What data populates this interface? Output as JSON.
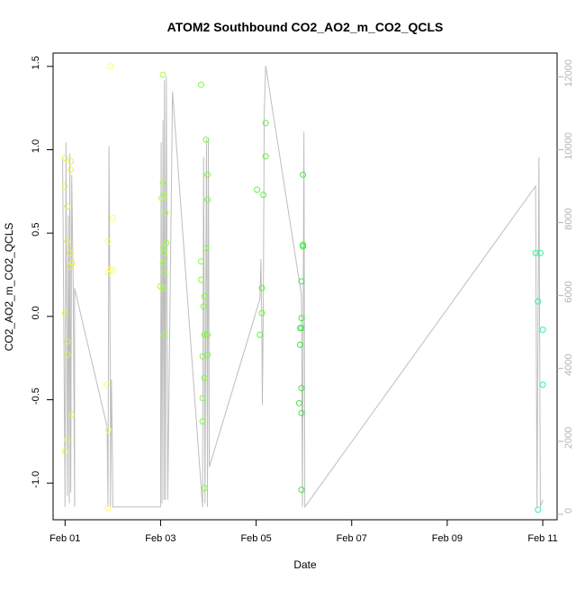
{
  "chart_data": {
    "type": "scatter",
    "title": "ATOM2 Southbound CO2_AO2_m_CO2_QCLS",
    "xlabel": "Date",
    "ylabel": "CO2_AO2_m_CO2_QCLS",
    "x_unit": "days since Feb 01",
    "xlim": [
      -0.25,
      10.3
    ],
    "ylim": [
      -1.22,
      1.58
    ],
    "y2lim": [
      -150,
      12650
    ],
    "x_ticks": [
      {
        "value": 0,
        "label": "Feb 01"
      },
      {
        "value": 2,
        "label": "Feb 03"
      },
      {
        "value": 4,
        "label": "Feb 05"
      },
      {
        "value": 6,
        "label": "Feb 07"
      },
      {
        "value": 8,
        "label": "Feb 09"
      },
      {
        "value": 10,
        "label": "Feb 11"
      }
    ],
    "y_ticks": [
      {
        "value": -1.0,
        "label": "-1.0"
      },
      {
        "value": -0.5,
        "label": "-0.5"
      },
      {
        "value": 0.0,
        "label": "0.0"
      },
      {
        "value": 0.5,
        "label": "0.5"
      },
      {
        "value": 1.0,
        "label": "1.0"
      },
      {
        "value": 1.5,
        "label": "1.5"
      }
    ],
    "y2_ticks": [
      {
        "value": 0,
        "label": "0"
      },
      {
        "value": 2000,
        "label": "2000"
      },
      {
        "value": 4000,
        "label": "4000"
      },
      {
        "value": 6000,
        "label": "6000"
      },
      {
        "value": 8000,
        "label": "8000"
      },
      {
        "value": 10000,
        "label": "10000"
      },
      {
        "value": 12000,
        "label": "12000"
      }
    ],
    "grid": false,
    "point_color_scale": [
      "#e6f04a",
      "#ffff60",
      "#a0ff40",
      "#60f040",
      "#30e050",
      "#30f0a0"
    ],
    "points": [
      {
        "x": 0.0,
        "y": 0.95,
        "color": "#e6f04a"
      },
      {
        "x": 0.0,
        "y": 0.78,
        "color": "#e6f04a"
      },
      {
        "x": 0.05,
        "y": 0.66,
        "color": "#e6f04a"
      },
      {
        "x": 0.05,
        "y": 0.45,
        "color": "#e6f04a"
      },
      {
        "x": 0.1,
        "y": 0.38,
        "color": "#e6f04a"
      },
      {
        "x": 0.1,
        "y": 0.3,
        "color": "#e6f04a"
      },
      {
        "x": 0.12,
        "y": 0.93,
        "color": "#e6f04a"
      },
      {
        "x": 0.12,
        "y": 0.88,
        "color": "#e6f04a"
      },
      {
        "x": 0.15,
        "y": 0.32,
        "color": "#e6f04a"
      },
      {
        "x": 0.0,
        "y": 0.02,
        "color": "#e6f04a"
      },
      {
        "x": 0.05,
        "y": -0.15,
        "color": "#e6f04a"
      },
      {
        "x": 0.05,
        "y": -0.23,
        "color": "#e6f04a"
      },
      {
        "x": 0.15,
        "y": -0.59,
        "color": "#e6f04a"
      },
      {
        "x": 0.05,
        "y": -0.74,
        "color": "#e6f04a"
      },
      {
        "x": 0.0,
        "y": -0.81,
        "color": "#e6f04a"
      },
      {
        "x": 0.95,
        "y": 1.5,
        "color": "#ffff60"
      },
      {
        "x": 1.0,
        "y": 0.59,
        "color": "#ffff60"
      },
      {
        "x": 0.9,
        "y": 0.45,
        "color": "#ffff60"
      },
      {
        "x": 0.95,
        "y": 0.28,
        "color": "#ffff60"
      },
      {
        "x": 1.0,
        "y": 0.28,
        "color": "#ffff60"
      },
      {
        "x": 0.9,
        "y": 0.26,
        "color": "#ffff60"
      },
      {
        "x": 0.88,
        "y": -0.41,
        "color": "#ffff60"
      },
      {
        "x": 0.9,
        "y": -0.68,
        "color": "#ffff60"
      },
      {
        "x": 0.9,
        "y": -1.15,
        "color": "#ffff60"
      },
      {
        "x": 2.05,
        "y": 1.45,
        "color": "#a0ff40"
      },
      {
        "x": 2.05,
        "y": 0.8,
        "color": "#a0ff40"
      },
      {
        "x": 2.08,
        "y": 0.73,
        "color": "#a0ff40"
      },
      {
        "x": 2.02,
        "y": 0.71,
        "color": "#a0ff40"
      },
      {
        "x": 2.1,
        "y": 0.62,
        "color": "#a0ff40"
      },
      {
        "x": 2.12,
        "y": 0.44,
        "color": "#a0ff40"
      },
      {
        "x": 2.05,
        "y": 0.41,
        "color": "#a0ff40"
      },
      {
        "x": 2.08,
        "y": 0.38,
        "color": "#a0ff40"
      },
      {
        "x": 2.05,
        "y": 0.32,
        "color": "#a0ff40"
      },
      {
        "x": 2.08,
        "y": 0.26,
        "color": "#a0ff40"
      },
      {
        "x": 2.0,
        "y": 0.18,
        "color": "#a0ff40"
      },
      {
        "x": 2.05,
        "y": 0.17,
        "color": "#a0ff40"
      },
      {
        "x": 2.08,
        "y": -0.11,
        "color": "#a0ff40"
      },
      {
        "x": 2.85,
        "y": 1.39,
        "color": "#80f840"
      },
      {
        "x": 2.95,
        "y": 1.06,
        "color": "#80f840"
      },
      {
        "x": 2.98,
        "y": 0.85,
        "color": "#80f840"
      },
      {
        "x": 2.98,
        "y": 0.7,
        "color": "#80f840"
      },
      {
        "x": 2.95,
        "y": 0.41,
        "color": "#80f840"
      },
      {
        "x": 2.85,
        "y": 0.33,
        "color": "#80f840"
      },
      {
        "x": 2.85,
        "y": 0.22,
        "color": "#80f840"
      },
      {
        "x": 2.92,
        "y": 0.12,
        "color": "#80f840"
      },
      {
        "x": 2.9,
        "y": 0.06,
        "color": "#80f840"
      },
      {
        "x": 2.92,
        "y": -0.11,
        "color": "#80f840"
      },
      {
        "x": 2.98,
        "y": -0.11,
        "color": "#80f840"
      },
      {
        "x": 2.98,
        "y": -0.23,
        "color": "#80f840"
      },
      {
        "x": 2.88,
        "y": -0.24,
        "color": "#80f840"
      },
      {
        "x": 2.92,
        "y": -0.37,
        "color": "#80f840"
      },
      {
        "x": 2.88,
        "y": -0.49,
        "color": "#80f840"
      },
      {
        "x": 2.88,
        "y": -0.63,
        "color": "#80f840"
      },
      {
        "x": 2.92,
        "y": -1.03,
        "color": "#80f840"
      },
      {
        "x": 4.2,
        "y": 1.16,
        "color": "#60f040"
      },
      {
        "x": 4.2,
        "y": 0.96,
        "color": "#60f040"
      },
      {
        "x": 4.02,
        "y": 0.76,
        "color": "#60f040"
      },
      {
        "x": 4.15,
        "y": 0.73,
        "color": "#60f040"
      },
      {
        "x": 4.12,
        "y": 0.17,
        "color": "#60f040"
      },
      {
        "x": 4.12,
        "y": 0.02,
        "color": "#60f040"
      },
      {
        "x": 4.08,
        "y": -0.11,
        "color": "#60f040"
      },
      {
        "x": 4.98,
        "y": 0.85,
        "color": "#40e840"
      },
      {
        "x": 4.98,
        "y": 0.43,
        "color": "#40e840"
      },
      {
        "x": 4.98,
        "y": 0.42,
        "color": "#40e840"
      },
      {
        "x": 4.95,
        "y": 0.21,
        "color": "#40e840"
      },
      {
        "x": 4.95,
        "y": -0.01,
        "color": "#40e840"
      },
      {
        "x": 4.92,
        "y": -0.07,
        "color": "#40e840"
      },
      {
        "x": 4.95,
        "y": -0.07,
        "color": "#40e840"
      },
      {
        "x": 4.92,
        "y": -0.17,
        "color": "#40e840"
      },
      {
        "x": 4.95,
        "y": -0.43,
        "color": "#40e840"
      },
      {
        "x": 4.9,
        "y": -0.52,
        "color": "#40e840"
      },
      {
        "x": 4.95,
        "y": -0.58,
        "color": "#40e840"
      },
      {
        "x": 4.95,
        "y": -1.04,
        "color": "#40e840"
      },
      {
        "x": 9.85,
        "y": 0.38,
        "color": "#30f0a0"
      },
      {
        "x": 9.95,
        "y": 0.38,
        "color": "#30f0a0"
      },
      {
        "x": 9.9,
        "y": 0.09,
        "color": "#30f0a0"
      },
      {
        "x": 10.0,
        "y": -0.08,
        "color": "#30f0a0"
      },
      {
        "x": 10.0,
        "y": -0.41,
        "color": "#30f0a0"
      },
      {
        "x": 9.9,
        "y": -1.16,
        "color": "#30f0a0"
      }
    ],
    "altitude_line_color": "#bdbdbd",
    "altitude_line": [
      [
        -0.05,
        9800
      ],
      [
        0.0,
        200
      ],
      [
        0.02,
        10200
      ],
      [
        0.05,
        500
      ],
      [
        0.07,
        8200
      ],
      [
        0.09,
        300
      ],
      [
        0.1,
        9900
      ],
      [
        0.12,
        600
      ],
      [
        0.14,
        9300
      ],
      [
        0.17,
        6400
      ],
      [
        0.2,
        200
      ],
      [
        0.2,
        6200
      ],
      [
        0.88,
        2400
      ],
      [
        0.9,
        200
      ],
      [
        0.92,
        10100
      ],
      [
        0.95,
        3200
      ],
      [
        0.95,
        200
      ],
      [
        0.97,
        3700
      ],
      [
        0.99,
        1900
      ],
      [
        1.0,
        200
      ],
      [
        2.0,
        200
      ],
      [
        2.01,
        10200
      ],
      [
        2.03,
        300
      ],
      [
        2.05,
        10800
      ],
      [
        2.07,
        400
      ],
      [
        2.08,
        11900
      ],
      [
        2.1,
        400
      ],
      [
        2.12,
        12000
      ],
      [
        2.15,
        400
      ],
      [
        2.25,
        11600
      ],
      [
        2.88,
        200
      ],
      [
        2.9,
        9800
      ],
      [
        2.93,
        300
      ],
      [
        2.96,
        10300
      ],
      [
        2.98,
        1300
      ],
      [
        2.98,
        200
      ],
      [
        3.0,
        10300
      ],
      [
        3.02,
        1300
      ],
      [
        4.08,
        5900
      ],
      [
        4.1,
        7000
      ],
      [
        4.12,
        5000
      ],
      [
        4.13,
        3000
      ],
      [
        4.15,
        5800
      ],
      [
        4.17,
        11000
      ],
      [
        4.2,
        12300
      ],
      [
        4.95,
        6000
      ],
      [
        4.97,
        200
      ],
      [
        5.0,
        10500
      ],
      [
        5.02,
        200
      ],
      [
        9.85,
        9000
      ],
      [
        9.88,
        200
      ],
      [
        9.92,
        9800
      ],
      [
        9.95,
        200
      ],
      [
        10.0,
        400
      ]
    ]
  }
}
